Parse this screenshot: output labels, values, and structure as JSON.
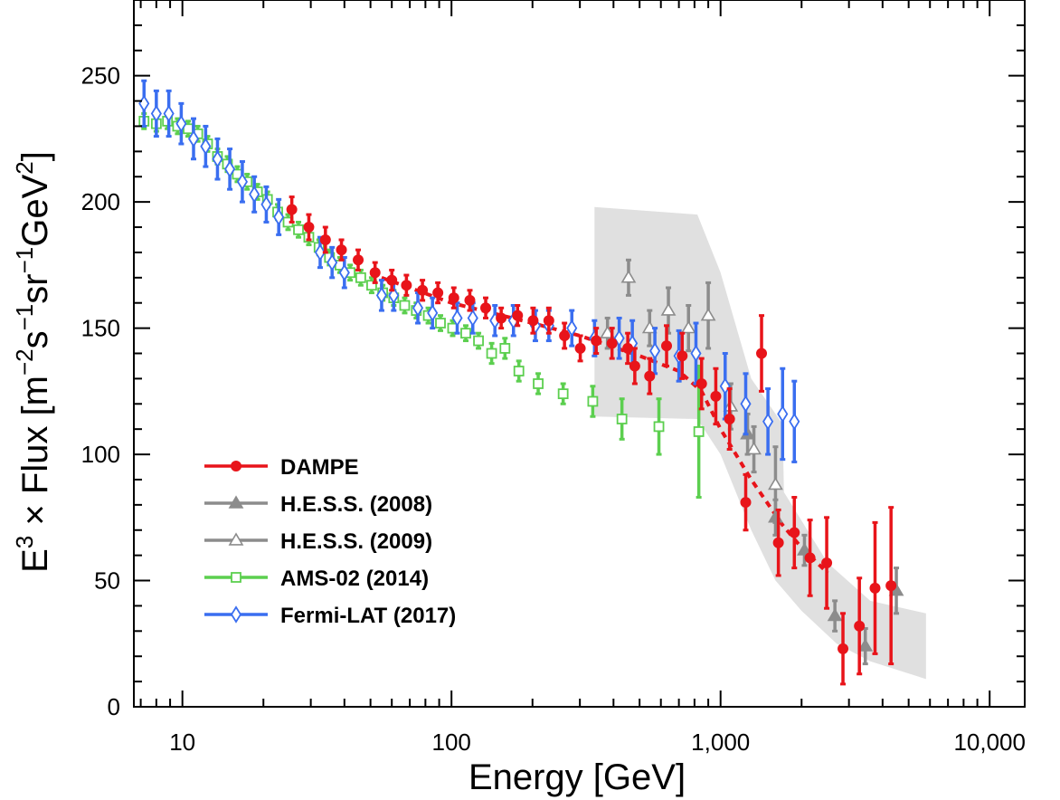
{
  "chart_data": {
    "type": "scatter",
    "title": "",
    "xlabel": "Energy [GeV]",
    "ylabel_parts": {
      "base": "E",
      "exp": "3",
      "mid": " × Flux [m",
      "e1": "−2",
      "t1": "s",
      "e2": "−1",
      "t2": "sr",
      "e3": "−1",
      "t3": "GeV",
      "e4": "2",
      "t4": "]"
    },
    "xscale": "log",
    "xlim": [
      6.6,
      13500
    ],
    "ylim": [
      0,
      280
    ],
    "xticks": [
      {
        "value": 10,
        "label": "10"
      },
      {
        "value": 100,
        "label": "100"
      },
      {
        "value": 1000,
        "label": "1,000"
      },
      {
        "value": 10000,
        "label": "10,000"
      }
    ],
    "yticks": [
      {
        "value": 0,
        "label": "0"
      },
      {
        "value": 50,
        "label": "50"
      },
      {
        "value": 100,
        "label": "100"
      },
      {
        "value": 150,
        "label": "150"
      },
      {
        "value": 200,
        "label": "200"
      },
      {
        "value": 250,
        "label": "250"
      }
    ],
    "legend_position": "bottom-left",
    "band": {
      "name": "H.E.S.S. systematic uncertainty band",
      "color": "#e0e0e0",
      "upper": [
        [
          340,
          198
        ],
        [
          820,
          195
        ],
        [
          1000,
          172
        ],
        [
          1300,
          130
        ],
        [
          1700,
          112
        ],
        [
          1720,
          85
        ],
        [
          2500,
          57
        ],
        [
          3600,
          42
        ],
        [
          5800,
          37
        ]
      ],
      "lower": [
        [
          340,
          115
        ],
        [
          820,
          114
        ],
        [
          1000,
          100
        ],
        [
          1300,
          70
        ],
        [
          1600,
          50
        ],
        [
          2000,
          38
        ],
        [
          2700,
          25
        ],
        [
          3600,
          18
        ],
        [
          5800,
          11
        ]
      ]
    },
    "fit": {
      "name": "DAMPE broken power-law fit",
      "color": "#e8141a",
      "points": [
        [
          55,
          170
        ],
        [
          100,
          160
        ],
        [
          200,
          152
        ],
        [
          300,
          147
        ],
        [
          500,
          139
        ],
        [
          700,
          133
        ],
        [
          850,
          125
        ],
        [
          1000,
          110
        ],
        [
          1300,
          90
        ],
        [
          1700,
          72
        ],
        [
          2000,
          63
        ],
        [
          2500,
          53
        ]
      ]
    },
    "series": [
      {
        "name": "DAMPE",
        "color": "#e8141a",
        "marker": "circle-filled",
        "points": [
          {
            "x": 25.5,
            "y": 197,
            "err": 5
          },
          {
            "x": 29.5,
            "y": 190,
            "err": 5
          },
          {
            "x": 34,
            "y": 185,
            "err": 5
          },
          {
            "x": 39,
            "y": 181,
            "err": 4
          },
          {
            "x": 45,
            "y": 177,
            "err": 4
          },
          {
            "x": 52,
            "y": 172,
            "err": 4
          },
          {
            "x": 60,
            "y": 169,
            "err": 4
          },
          {
            "x": 68,
            "y": 167,
            "err": 4
          },
          {
            "x": 78,
            "y": 165,
            "err": 4
          },
          {
            "x": 89,
            "y": 164,
            "err": 4
          },
          {
            "x": 102,
            "y": 162,
            "err": 4
          },
          {
            "x": 117,
            "y": 161,
            "err": 4
          },
          {
            "x": 134,
            "y": 158,
            "err": 4
          },
          {
            "x": 153,
            "y": 154,
            "err": 4
          },
          {
            "x": 176,
            "y": 155,
            "err": 4
          },
          {
            "x": 201,
            "y": 153,
            "err": 5
          },
          {
            "x": 230,
            "y": 153,
            "err": 5
          },
          {
            "x": 263,
            "y": 147,
            "err": 5
          },
          {
            "x": 301,
            "y": 142,
            "err": 5
          },
          {
            "x": 345,
            "y": 145,
            "err": 5
          },
          {
            "x": 395,
            "y": 144,
            "err": 6
          },
          {
            "x": 452,
            "y": 142,
            "err": 6
          },
          {
            "x": 480,
            "y": 135,
            "err": 7
          },
          {
            "x": 545,
            "y": 131,
            "err": 7
          },
          {
            "x": 630,
            "y": 143,
            "err": 8
          },
          {
            "x": 720,
            "y": 139,
            "err": 9
          },
          {
            "x": 850,
            "y": 128,
            "err": 10
          },
          {
            "x": 960,
            "y": 123,
            "err": 11
          },
          {
            "x": 1080,
            "y": 114,
            "err": 12
          },
          {
            "x": 1240,
            "y": 81,
            "err": 11
          },
          {
            "x": 1420,
            "y": 140,
            "err": 15
          },
          {
            "x": 1640,
            "y": 65,
            "err": 13
          },
          {
            "x": 1880,
            "y": 69,
            "err": 14
          },
          {
            "x": 2150,
            "y": 59,
            "err": 15
          },
          {
            "x": 2480,
            "y": 57,
            "err": 18
          },
          {
            "x": 2850,
            "y": 23,
            "err": 14
          },
          {
            "x": 3280,
            "y": 32,
            "err": 19
          },
          {
            "x": 3750,
            "y": 47,
            "err": 26
          },
          {
            "x": 4300,
            "y": 48,
            "err": 31
          }
        ]
      },
      {
        "name": "H.E.S.S. (2008)",
        "color": "#8c8c8c",
        "marker": "triangle-filled",
        "points": [
          {
            "x": 1260,
            "y": 108,
            "err": 8
          },
          {
            "x": 1600,
            "y": 75,
            "err": 7
          },
          {
            "x": 2050,
            "y": 62,
            "err": 6
          },
          {
            "x": 2660,
            "y": 36,
            "err": 6
          },
          {
            "x": 3450,
            "y": 24,
            "err": 7
          },
          {
            "x": 4500,
            "y": 46,
            "err": 9
          }
        ]
      },
      {
        "name": "H.E.S.S. (2009)",
        "color": "#8c8c8c",
        "marker": "triangle-open",
        "points": [
          {
            "x": 380,
            "y": 148,
            "err": 6
          },
          {
            "x": 455,
            "y": 170,
            "err": 7
          },
          {
            "x": 545,
            "y": 150,
            "err": 7
          },
          {
            "x": 640,
            "y": 157,
            "err": 9
          },
          {
            "x": 760,
            "y": 150,
            "err": 9
          },
          {
            "x": 900,
            "y": 155,
            "err": 13
          },
          {
            "x": 1090,
            "y": 119,
            "err": 9
          },
          {
            "x": 1330,
            "y": 102,
            "err": 9
          },
          {
            "x": 1600,
            "y": 88,
            "err": 15
          }
        ]
      },
      {
        "name": "AMS-02 (2014)",
        "color": "#5ccf4f",
        "marker": "square-open",
        "points": [
          {
            "x": 7.2,
            "y": 232,
            "err": 3
          },
          {
            "x": 8.0,
            "y": 231,
            "err": 3
          },
          {
            "x": 8.8,
            "y": 232,
            "err": 3
          },
          {
            "x": 9.6,
            "y": 230,
            "err": 3
          },
          {
            "x": 10.5,
            "y": 229,
            "err": 3
          },
          {
            "x": 11.4,
            "y": 227,
            "err": 3
          },
          {
            "x": 12.4,
            "y": 223,
            "err": 3
          },
          {
            "x": 13.5,
            "y": 218,
            "err": 3
          },
          {
            "x": 14.7,
            "y": 215,
            "err": 3
          },
          {
            "x": 16,
            "y": 211,
            "err": 3
          },
          {
            "x": 17.4,
            "y": 208,
            "err": 3
          },
          {
            "x": 19,
            "y": 204,
            "err": 3
          },
          {
            "x": 20.7,
            "y": 201,
            "err": 3
          },
          {
            "x": 22.6,
            "y": 196,
            "err": 3
          },
          {
            "x": 24.7,
            "y": 192,
            "err": 3
          },
          {
            "x": 27,
            "y": 189,
            "err": 3
          },
          {
            "x": 29.5,
            "y": 186,
            "err": 3
          },
          {
            "x": 32.2,
            "y": 182,
            "err": 3
          },
          {
            "x": 35.2,
            "y": 178,
            "err": 3
          },
          {
            "x": 38.5,
            "y": 175,
            "err": 3
          },
          {
            "x": 42,
            "y": 172,
            "err": 3
          },
          {
            "x": 46,
            "y": 170,
            "err": 3
          },
          {
            "x": 50.5,
            "y": 167,
            "err": 3
          },
          {
            "x": 55.5,
            "y": 164,
            "err": 3
          },
          {
            "x": 61,
            "y": 162,
            "err": 3
          },
          {
            "x": 67,
            "y": 159,
            "err": 3
          },
          {
            "x": 74,
            "y": 157,
            "err": 3
          },
          {
            "x": 82,
            "y": 155,
            "err": 3
          },
          {
            "x": 91,
            "y": 152,
            "err": 3
          },
          {
            "x": 101,
            "y": 150,
            "err": 3
          },
          {
            "x": 113,
            "y": 148,
            "err": 3
          },
          {
            "x": 126,
            "y": 145,
            "err": 3
          },
          {
            "x": 141,
            "y": 140,
            "err": 4
          },
          {
            "x": 158,
            "y": 142,
            "err": 4
          },
          {
            "x": 178,
            "y": 133,
            "err": 4
          },
          {
            "x": 210,
            "y": 128,
            "err": 4
          },
          {
            "x": 260,
            "y": 124,
            "err": 4
          },
          {
            "x": 335,
            "y": 121,
            "err": 6
          },
          {
            "x": 430,
            "y": 114,
            "err": 8
          },
          {
            "x": 590,
            "y": 111,
            "err": 11
          },
          {
            "x": 830,
            "y": 109,
            "err": 26
          }
        ]
      },
      {
        "name": "Fermi-LAT (2017)",
        "color": "#3a6ef0",
        "marker": "diamond-open",
        "points": [
          {
            "x": 7.2,
            "y": 239,
            "err": 9
          },
          {
            "x": 8.0,
            "y": 235,
            "err": 9
          },
          {
            "x": 8.9,
            "y": 235,
            "err": 9
          },
          {
            "x": 9.9,
            "y": 231,
            "err": 8
          },
          {
            "x": 11,
            "y": 225,
            "err": 8
          },
          {
            "x": 12.2,
            "y": 222,
            "err": 8
          },
          {
            "x": 13.5,
            "y": 217,
            "err": 8
          },
          {
            "x": 15,
            "y": 213,
            "err": 8
          },
          {
            "x": 16.7,
            "y": 208,
            "err": 8
          },
          {
            "x": 18.5,
            "y": 203,
            "err": 7
          },
          {
            "x": 20.5,
            "y": 199,
            "err": 7
          },
          {
            "x": 22.8,
            "y": 194,
            "err": 7
          },
          {
            "x": 32.5,
            "y": 180,
            "err": 6
          },
          {
            "x": 36,
            "y": 176,
            "err": 6
          },
          {
            "x": 40,
            "y": 172,
            "err": 6
          },
          {
            "x": 55,
            "y": 163,
            "err": 6
          },
          {
            "x": 61,
            "y": 163,
            "err": 6
          },
          {
            "x": 75,
            "y": 158,
            "err": 6
          },
          {
            "x": 85,
            "y": 156,
            "err": 6
          },
          {
            "x": 105,
            "y": 154,
            "err": 6
          },
          {
            "x": 120,
            "y": 154,
            "err": 6
          },
          {
            "x": 145,
            "y": 153,
            "err": 6
          },
          {
            "x": 170,
            "y": 153,
            "err": 6
          },
          {
            "x": 205,
            "y": 151,
            "err": 6
          },
          {
            "x": 230,
            "y": 151,
            "err": 6
          },
          {
            "x": 280,
            "y": 150,
            "err": 7
          },
          {
            "x": 340,
            "y": 146,
            "err": 7
          },
          {
            "x": 420,
            "y": 146,
            "err": 8
          },
          {
            "x": 470,
            "y": 144,
            "err": 9
          },
          {
            "x": 570,
            "y": 141,
            "err": 9
          },
          {
            "x": 700,
            "y": 139,
            "err": 10
          },
          {
            "x": 810,
            "y": 140,
            "err": 12
          },
          {
            "x": 1040,
            "y": 127,
            "err": 13
          },
          {
            "x": 1240,
            "y": 120,
            "err": 12
          },
          {
            "x": 1500,
            "y": 113,
            "err": 13
          },
          {
            "x": 1700,
            "y": 116,
            "err": 18
          },
          {
            "x": 1880,
            "y": 113,
            "err": 16
          }
        ]
      }
    ]
  }
}
